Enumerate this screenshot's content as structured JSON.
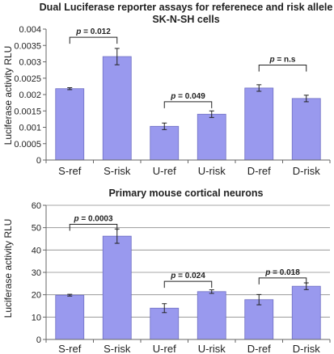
{
  "chart_data": [
    {
      "type": "bar",
      "title": "Dual Luciferase reporter assays for referenece and risk allele",
      "subtitle": "SK-N-SH cells",
      "ylabel": "Luciferase activity RLU",
      "xlabel": "",
      "categories": [
        "S-ref",
        "S-risk",
        "U-ref",
        "U-risk",
        "D-ref",
        "D-risk"
      ],
      "values": [
        0.00218,
        0.00316,
        0.00103,
        0.0014,
        0.0022,
        0.00188
      ],
      "errors": [
        3e-05,
        0.00025,
        0.0001,
        0.0001,
        0.0001,
        0.0001
      ],
      "ylim": [
        0,
        0.004
      ],
      "yticks": [
        "0",
        "0.0005",
        "0.001",
        "0.0015",
        "0.002",
        "0.0025",
        "0.003",
        "0.0035",
        "0.004"
      ],
      "grid": false,
      "bar_color": "#9999ee",
      "annotations": [
        {
          "from": 0,
          "to": 1,
          "label_italic": "p",
          "label_rest": " = 0.012",
          "level": 0.00375
        },
        {
          "from": 2,
          "to": 3,
          "label_italic": "p",
          "label_rest": " = 0.049",
          "level": 0.00178
        },
        {
          "from": 4,
          "to": 5,
          "label_italic": "p",
          "label_rest": " = n.s",
          "level": 0.0029
        }
      ]
    },
    {
      "type": "bar",
      "title": "Primary mouse cortical neurons",
      "subtitle": "",
      "ylabel": "Luciferase activity RLU",
      "xlabel": "",
      "categories": [
        "S-ref",
        "S-risk",
        "U-ref",
        "U-risk",
        "D-ref",
        "D-risk"
      ],
      "values": [
        19.8,
        46.2,
        14,
        21.4,
        17.8,
        23.8
      ],
      "errors": [
        0.4,
        3.2,
        2,
        0.8,
        2.3,
        1.5
      ],
      "ylim": [
        0,
        60
      ],
      "yticks": [
        "0",
        "10",
        "20",
        "30",
        "40",
        "50",
        "60"
      ],
      "grid": true,
      "bar_color": "#9999ee",
      "annotations": [
        {
          "from": 0,
          "to": 1,
          "label_italic": "p",
          "label_rest": " = 0.0003",
          "level": 51.5
        },
        {
          "from": 2,
          "to": 3,
          "label_italic": "p",
          "label_rest": " = 0.024",
          "level": 26
        },
        {
          "from": 4,
          "to": 5,
          "label_italic": "p",
          "label_rest": " = 0.018",
          "level": 27.5
        }
      ]
    }
  ]
}
